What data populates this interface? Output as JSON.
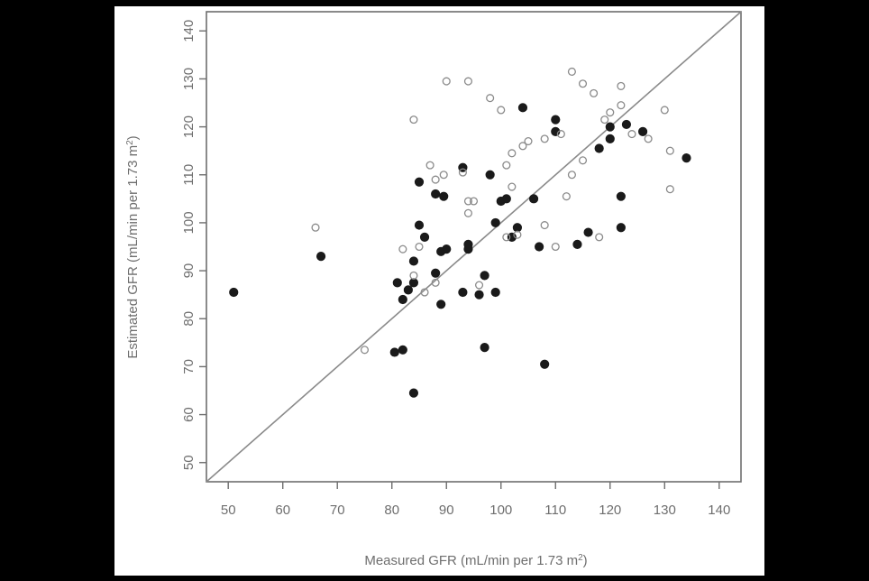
{
  "chart_data": {
    "type": "scatter",
    "xlabel": "Measured GFR (mL/min per 1.73 m",
    "xlabel_sup": "2",
    "xlabel_end": ")",
    "ylabel": "Estimated GFR (mL/min per 1.73 m",
    "ylabel_sup": "2",
    "ylabel_end": ")",
    "xlim": [
      46,
      144
    ],
    "ylim": [
      46,
      144
    ],
    "x_ticks": [
      50,
      60,
      70,
      80,
      90,
      100,
      110,
      120,
      130,
      140
    ],
    "y_ticks": [
      50,
      60,
      70,
      80,
      90,
      100,
      110,
      120,
      130,
      140
    ],
    "x_tick_labels": [
      "50",
      "60",
      "70",
      "80",
      "90",
      "100",
      "110",
      "120",
      "130",
      "140"
    ],
    "y_tick_labels": [
      "50",
      "60",
      "70",
      "80",
      "90",
      "100",
      "110",
      "120",
      "130",
      "140"
    ],
    "reference_line": "y = x",
    "grid": false,
    "colors": {
      "axis": "#6e6e6e",
      "filled": "#1a1a1a",
      "open": "#8a8a8a",
      "line": "#8a8a8a"
    },
    "series": [
      {
        "marker": "filled",
        "points": [
          [
            51,
            85.5
          ],
          [
            67,
            93
          ],
          [
            80.5,
            73
          ],
          [
            81,
            87.5
          ],
          [
            82,
            73.5
          ],
          [
            82,
            84
          ],
          [
            83,
            86
          ],
          [
            84,
            64.5
          ],
          [
            84,
            87.5
          ],
          [
            84,
            92
          ],
          [
            85,
            99.5
          ],
          [
            85,
            108.5
          ],
          [
            86,
            97
          ],
          [
            88,
            89.5
          ],
          [
            88,
            106
          ],
          [
            89,
            83
          ],
          [
            89,
            94
          ],
          [
            89.5,
            105.5
          ],
          [
            90,
            94.5
          ],
          [
            93,
            85.5
          ],
          [
            93,
            111.5
          ],
          [
            94,
            95.5
          ],
          [
            94,
            94.5
          ],
          [
            96,
            85
          ],
          [
            97,
            89
          ],
          [
            97,
            74
          ],
          [
            98,
            110
          ],
          [
            99,
            85.5
          ],
          [
            99,
            100
          ],
          [
            100,
            104.5
          ],
          [
            101,
            105
          ],
          [
            102,
            97
          ],
          [
            103,
            99
          ],
          [
            104,
            124
          ],
          [
            106,
            105
          ],
          [
            107,
            95
          ],
          [
            108,
            70.5
          ],
          [
            110,
            121.5
          ],
          [
            110,
            119
          ],
          [
            114,
            95.5
          ],
          [
            116,
            98
          ],
          [
            118,
            115.5
          ],
          [
            120,
            117.5
          ],
          [
            120,
            120
          ],
          [
            122,
            105.5
          ],
          [
            122,
            99
          ],
          [
            123,
            120.5
          ],
          [
            126,
            119
          ],
          [
            134,
            113.5
          ]
        ]
      },
      {
        "marker": "open",
        "points": [
          [
            66,
            99
          ],
          [
            75,
            73.5
          ],
          [
            82,
            94.5
          ],
          [
            84,
            121.5
          ],
          [
            84,
            89
          ],
          [
            85,
            95
          ],
          [
            86,
            85.5
          ],
          [
            87,
            112
          ],
          [
            88,
            87.5
          ],
          [
            88,
            109
          ],
          [
            89.5,
            110
          ],
          [
            90,
            129.5
          ],
          [
            93,
            110.5
          ],
          [
            94,
            129.5
          ],
          [
            94,
            102
          ],
          [
            94,
            104.5
          ],
          [
            95,
            104.5
          ],
          [
            96,
            87
          ],
          [
            98,
            126
          ],
          [
            100,
            123.5
          ],
          [
            101,
            112
          ],
          [
            101,
            97
          ],
          [
            102,
            107.5
          ],
          [
            102,
            114.5
          ],
          [
            103,
            97.5
          ],
          [
            104,
            116
          ],
          [
            105,
            117
          ],
          [
            108,
            117.5
          ],
          [
            108,
            99.5
          ],
          [
            110,
            95
          ],
          [
            111,
            118.5
          ],
          [
            112,
            105.5
          ],
          [
            113,
            110
          ],
          [
            113,
            131.5
          ],
          [
            115,
            129
          ],
          [
            115,
            113
          ],
          [
            117,
            127
          ],
          [
            118,
            97
          ],
          [
            119,
            121.5
          ],
          [
            120,
            123
          ],
          [
            122,
            124.5
          ],
          [
            122,
            128.5
          ],
          [
            124,
            118.5
          ],
          [
            127,
            117.5
          ],
          [
            130,
            123.5
          ],
          [
            131,
            115
          ],
          [
            131,
            107
          ]
        ]
      }
    ]
  }
}
